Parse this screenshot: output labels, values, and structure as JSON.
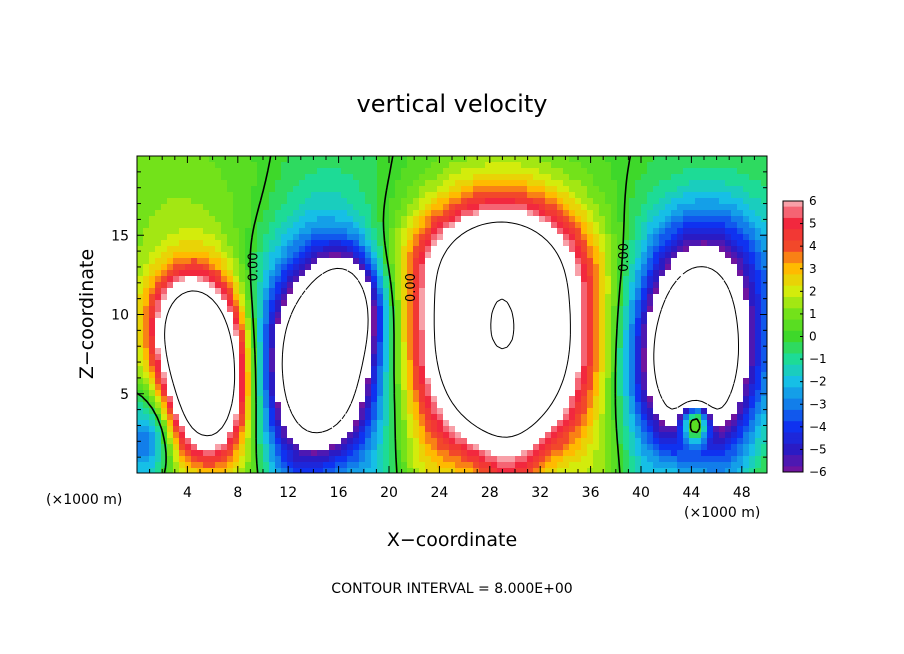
{
  "chart_data": {
    "type": "heatmap",
    "title": "vertical velocity",
    "xlabel": "X−coordinate",
    "ylabel": "Z−coordinate",
    "x_unit_left": "(×1000 m)",
    "x_unit_right": "(×1000 m)",
    "footer": "CONTOUR INTERVAL = 8.000E+00",
    "xlim": [
      0,
      50
    ],
    "ylim": [
      0,
      20
    ],
    "x_ticks": [
      4,
      8,
      12,
      16,
      20,
      24,
      28,
      32,
      36,
      40,
      44,
      48
    ],
    "y_ticks": [
      5,
      10,
      15
    ],
    "colorbar": {
      "min": -6,
      "max": 6,
      "ticks": [
        "6",
        "5",
        "4",
        "3",
        "2",
        "1",
        "0",
        "−1",
        "−2",
        "−3",
        "−4",
        "−5",
        "−6"
      ],
      "saturation": {
        "high": "#ffffff",
        "low": "#ffffff"
      }
    },
    "contour_interval": 8.0,
    "zero_contour_label": "0.00",
    "zero_contour_labels": [
      {
        "x": 9.3,
        "z": 13.0,
        "text": "0.00"
      },
      {
        "x": 21.8,
        "z": 11.7,
        "text": "0.00"
      },
      {
        "x": 38.7,
        "z": 13.6,
        "text": "0.00"
      }
    ],
    "cells": [
      {
        "name": "updraft-1",
        "x": 5.6,
        "z": 6.0,
        "sx": 2.3,
        "sz": 3.6,
        "amp": 14
      },
      {
        "name": "updraft-1-top",
        "x": 3.5,
        "z": 9.6,
        "sx": 2.2,
        "sz": 2.4,
        "amp": 5.5
      },
      {
        "name": "downdraft-1",
        "x": 14.5,
        "z": 6.8,
        "sx": 3.2,
        "sz": 4.4,
        "amp": -13
      },
      {
        "name": "downdraft-1-top",
        "x": 16.8,
        "z": 10.6,
        "sx": 1.8,
        "sz": 2.3,
        "amp": -6
      },
      {
        "name": "updraft-2",
        "x": 29.0,
        "z": 8.5,
        "sx": 4.6,
        "sz": 5.2,
        "amp": 16
      },
      {
        "name": "updraft-2-top",
        "x": 28.5,
        "z": 13.6,
        "sx": 4.6,
        "sz": 2.2,
        "amp": 3.5
      },
      {
        "name": "downdraft-2",
        "x": 44.2,
        "z": 7.0,
        "sx": 3.3,
        "sz": 4.0,
        "amp": -13
      },
      {
        "name": "downdraft-2-top",
        "x": 45.5,
        "z": 13.2,
        "sx": 3.8,
        "sz": 3.2,
        "amp": -4
      },
      {
        "name": "updraft-3",
        "x": 44.3,
        "z": 3.2,
        "sx": 0.8,
        "sz": 0.9,
        "amp": 9
      },
      {
        "name": "upper-left-positive",
        "x": 3.0,
        "z": 16.5,
        "sx": 6.0,
        "sz": 4.0,
        "amp": 1.2
      },
      {
        "name": "upper-mid-negative",
        "x": 15.0,
        "z": 16.0,
        "sx": 4.0,
        "sz": 4.0,
        "amp": -0.9
      },
      {
        "name": "lower-left-negative",
        "x": 1.0,
        "z": 2.0,
        "sx": 1.4,
        "sz": 2.0,
        "amp": -4
      }
    ]
  }
}
